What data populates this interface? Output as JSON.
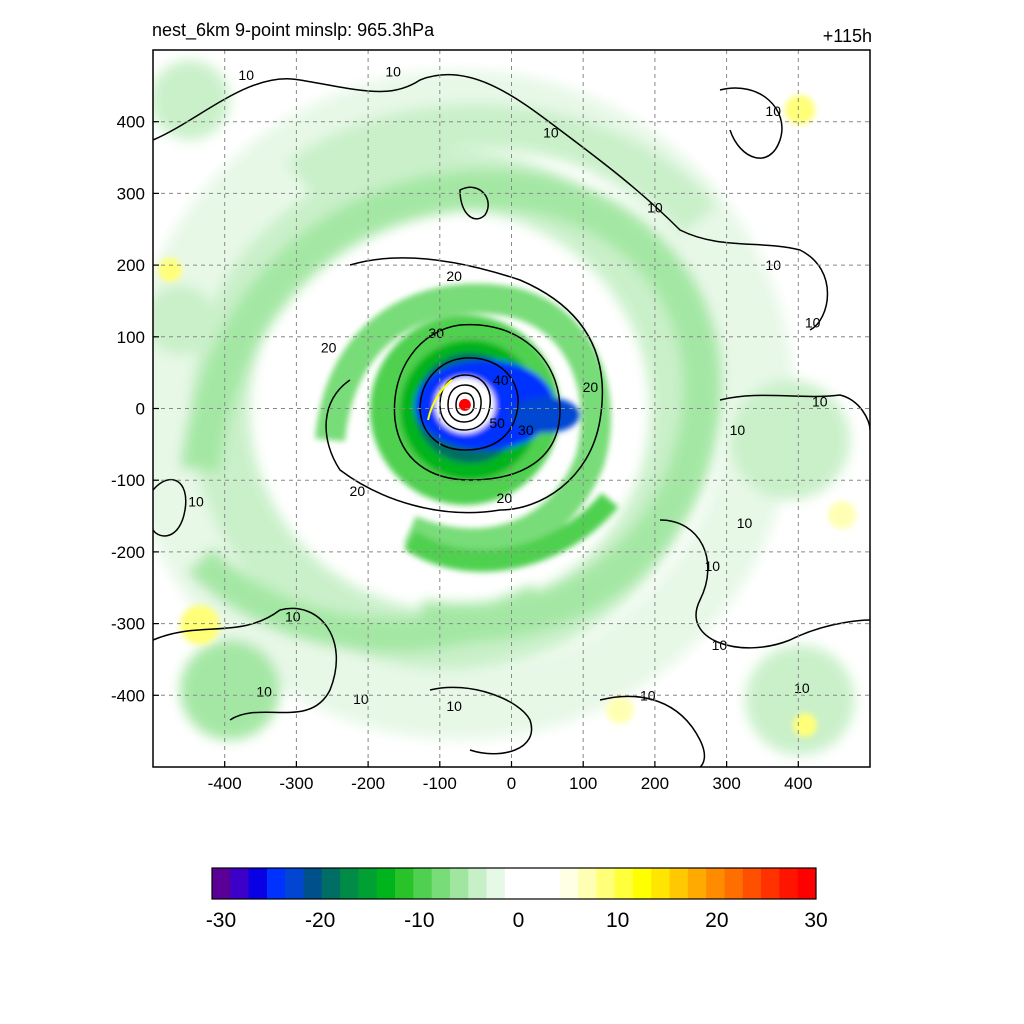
{
  "header": {
    "title": "nest_6km  9-point minslp: 965.3hPa",
    "forecast_hour": "+115h"
  },
  "colors": {
    "negative_scale": [
      "#5a0096",
      "#3c00c8",
      "#0a00e6",
      "#0032ff",
      "#0046d2",
      "#00508c",
      "#006e64",
      "#008c46",
      "#00a032",
      "#00b41e",
      "#28c328",
      "#50d050",
      "#78dc78",
      "#a0e6a0",
      "#c8f0c8",
      "#e6f8e6"
    ],
    "positive_scale": [
      "#ffffe6",
      "#ffffb4",
      "#ffff78",
      "#ffff3c",
      "#ffff00",
      "#ffe600",
      "#ffc800",
      "#ffaa00",
      "#ff8c00",
      "#ff6e00",
      "#ff5000",
      "#ff3200",
      "#ff1400",
      "#ff0000"
    ],
    "contour": "#000000",
    "center_marker": "#ff0000"
  },
  "chart_data": {
    "type": "heatmap",
    "xlim": [
      -500,
      500
    ],
    "ylim": [
      -500,
      500
    ],
    "x_ticks": [
      -400,
      -300,
      -200,
      -100,
      0,
      100,
      200,
      300,
      400
    ],
    "y_ticks": [
      400,
      300,
      200,
      100,
      0,
      -100,
      -200,
      -300,
      -400
    ],
    "grid": true,
    "center": [
      -65,
      5
    ],
    "contour_labels": [
      {
        "text": "10",
        "x": -370,
        "y": 465
      },
      {
        "text": "10",
        "x": -165,
        "y": 470
      },
      {
        "text": "10",
        "x": 55,
        "y": 385
      },
      {
        "text": "10",
        "x": 200,
        "y": 280
      },
      {
        "text": "10",
        "x": 365,
        "y": 200
      },
      {
        "text": "10",
        "x": 420,
        "y": 120
      },
      {
        "text": "10",
        "x": 430,
        "y": 10
      },
      {
        "text": "10",
        "x": 315,
        "y": -30
      },
      {
        "text": "10",
        "x": 325,
        "y": -160
      },
      {
        "text": "10",
        "x": 280,
        "y": -220
      },
      {
        "text": "10",
        "x": 290,
        "y": -330
      },
      {
        "text": "10",
        "x": 405,
        "y": -390
      },
      {
        "text": "10",
        "x": 190,
        "y": -400
      },
      {
        "text": "10",
        "x": -345,
        "y": -395
      },
      {
        "text": "10",
        "x": -305,
        "y": -290
      },
      {
        "text": "10",
        "x": -210,
        "y": -405
      },
      {
        "text": "10",
        "x": -80,
        "y": -415
      },
      {
        "text": "10",
        "x": -440,
        "y": -130
      },
      {
        "text": "10",
        "x": 365,
        "y": 415
      },
      {
        "text": "20",
        "x": -80,
        "y": 185
      },
      {
        "text": "20",
        "x": -255,
        "y": 85
      },
      {
        "text": "20",
        "x": 110,
        "y": 30
      },
      {
        "text": "20",
        "x": -215,
        "y": -115
      },
      {
        "text": "20",
        "x": -10,
        "y": -125
      },
      {
        "text": "30",
        "x": -105,
        "y": 105
      },
      {
        "text": "30",
        "x": 20,
        "y": -30
      },
      {
        "text": "40",
        "x": -15,
        "y": 40
      },
      {
        "text": "50",
        "x": -20,
        "y": -20
      }
    ]
  },
  "colorbar": {
    "ticks": [
      "-30",
      "-20",
      "-10",
      "0",
      "10",
      "20",
      "30"
    ]
  }
}
